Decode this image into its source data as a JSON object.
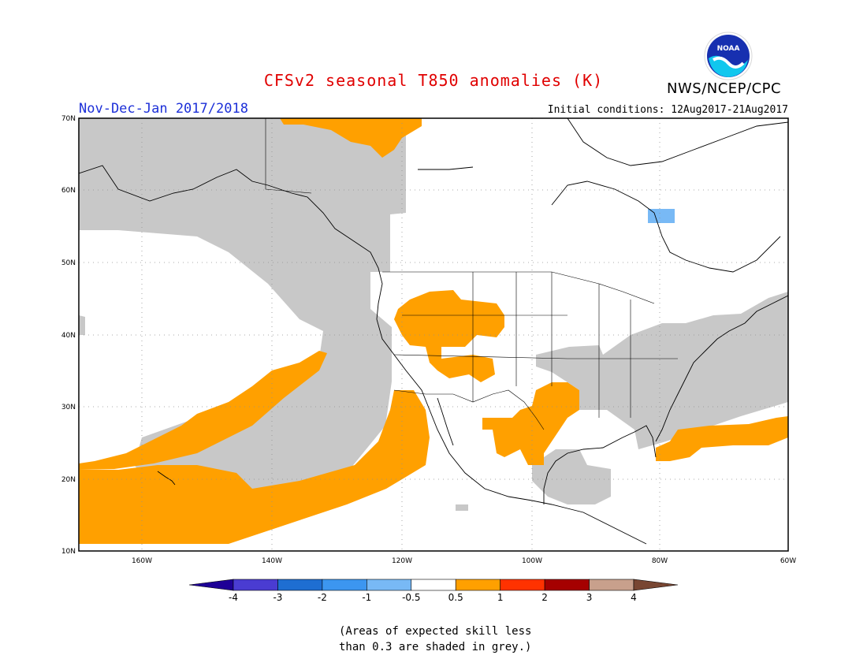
{
  "header": {
    "title": "CFSv2 seasonal T850 anomalies (K)",
    "period": "Nov-Dec-Jan 2017/2018",
    "initial_conditions": "Initial conditions: 12Aug2017-21Aug2017",
    "agency": "NWS/NCEP/CPC",
    "logo_text": "NOAA"
  },
  "map": {
    "region": "North America and eastern Pacific",
    "lat_labels": [
      "70N",
      "60N",
      "50N",
      "40N",
      "30N",
      "20N",
      "10N"
    ],
    "lon_labels": [
      "160W",
      "140W",
      "120W",
      "100W",
      "80W",
      "60W"
    ],
    "colors": {
      "low_skill": "#c8c8c8",
      "anom_0_5_to_1": "#ffa000",
      "anom_neg_1_to_neg_0_5": "#78b9f5",
      "coast": "#000000"
    }
  },
  "legend": {
    "labels": [
      "-4",
      "-3",
      "-2",
      "-1",
      "-0.5",
      "0.5",
      "1",
      "2",
      "3",
      "4"
    ],
    "colors": [
      "#1e0096",
      "#4a3cd2",
      "#1e6ed2",
      "#3c96f0",
      "#78b9f5",
      "#ffffff",
      "#ffa000",
      "#ff3200",
      "#a50000",
      "#c8a08c",
      "#784632"
    ]
  },
  "note": {
    "line1": "(Areas of expected skill less",
    "line2": "than 0.3 are shaded in grey.)"
  }
}
